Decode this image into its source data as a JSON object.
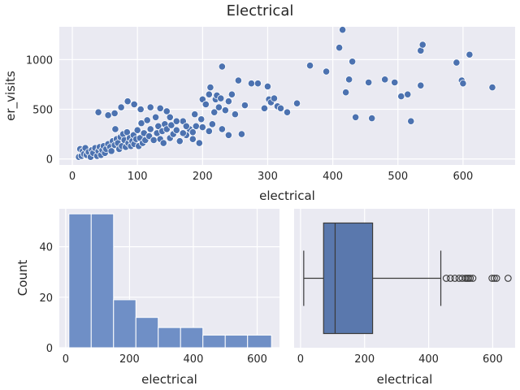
{
  "figure": {
    "title": "Electrical"
  },
  "colors": {
    "panel": "#eaeaf2",
    "grid": "#ffffff",
    "scatter": "#4c72b0",
    "hist": "#6f8fc6",
    "box": "#5a78ad",
    "edge": "#3a3a3a"
  },
  "chart_data": [
    {
      "type": "scatter",
      "title": "Electrical",
      "xlabel": "electrical",
      "ylabel": "er_visits",
      "xlim": [
        -20,
        680
      ],
      "ylim": [
        -60,
        1330
      ],
      "xticks": [
        0,
        100,
        200,
        300,
        400,
        500,
        600
      ],
      "yticks": [
        0,
        500,
        1000
      ],
      "grid": true,
      "points": [
        [
          10,
          20
        ],
        [
          12,
          100
        ],
        [
          14,
          30
        ],
        [
          16,
          80
        ],
        [
          18,
          50
        ],
        [
          20,
          110
        ],
        [
          22,
          40
        ],
        [
          25,
          70
        ],
        [
          28,
          20
        ],
        [
          30,
          90
        ],
        [
          32,
          60
        ],
        [
          35,
          110
        ],
        [
          38,
          30
        ],
        [
          40,
          80
        ],
        [
          42,
          120
        ],
        [
          44,
          40
        ],
        [
          46,
          90
        ],
        [
          48,
          130
        ],
        [
          50,
          60
        ],
        [
          52,
          100
        ],
        [
          55,
          150
        ],
        [
          58,
          120
        ],
        [
          60,
          80
        ],
        [
          62,
          180
        ],
        [
          65,
          140
        ],
        [
          66,
          300
        ],
        [
          68,
          200
        ],
        [
          70,
          160
        ],
        [
          72,
          100
        ],
        [
          74,
          220
        ],
        [
          76,
          130
        ],
        [
          78,
          250
        ],
        [
          80,
          190
        ],
        [
          82,
          120
        ],
        [
          84,
          270
        ],
        [
          86,
          160
        ],
        [
          88,
          210
        ],
        [
          90,
          130
        ],
        [
          92,
          180
        ],
        [
          94,
          240
        ],
        [
          95,
          150
        ],
        [
          98,
          200
        ],
        [
          100,
          290
        ],
        [
          102,
          130
        ],
        [
          104,
          210
        ],
        [
          106,
          360
        ],
        [
          108,
          160
        ],
        [
          110,
          260
        ],
        [
          112,
          190
        ],
        [
          115,
          390
        ],
        [
          118,
          230
        ],
        [
          120,
          300
        ],
        [
          125,
          190
        ],
        [
          128,
          420
        ],
        [
          130,
          260
        ],
        [
          132,
          330
        ],
        [
          135,
          200
        ],
        [
          138,
          280
        ],
        [
          140,
          160
        ],
        [
          142,
          350
        ],
        [
          145,
          300
        ],
        [
          150,
          210
        ],
        [
          152,
          340
        ],
        [
          155,
          250
        ],
        [
          160,
          290
        ],
        [
          165,
          180
        ],
        [
          170,
          380
        ],
        [
          175,
          240
        ],
        [
          180,
          300
        ],
        [
          185,
          200
        ],
        [
          188,
          450
        ],
        [
          190,
          330
        ],
        [
          195,
          160
        ],
        [
          198,
          400
        ],
        [
          200,
          600
        ],
        [
          205,
          550
        ],
        [
          210,
          650
        ],
        [
          212,
          720
        ],
        [
          215,
          350
        ],
        [
          218,
          470
        ],
        [
          220,
          600
        ],
        [
          222,
          640
        ],
        [
          225,
          520
        ],
        [
          228,
          610
        ],
        [
          230,
          930
        ],
        [
          235,
          490
        ],
        [
          240,
          580
        ],
        [
          245,
          650
        ],
        [
          250,
          450
        ],
        [
          255,
          790
        ],
        [
          265,
          540
        ],
        [
          275,
          760
        ],
        [
          285,
          760
        ],
        [
          295,
          510
        ],
        [
          300,
          730
        ],
        [
          302,
          600
        ],
        [
          305,
          570
        ],
        [
          310,
          610
        ],
        [
          315,
          530
        ],
        [
          320,
          510
        ],
        [
          330,
          470
        ],
        [
          345,
          560
        ],
        [
          365,
          940
        ],
        [
          390,
          880
        ],
        [
          410,
          1120
        ],
        [
          415,
          1300
        ],
        [
          420,
          670
        ],
        [
          425,
          800
        ],
        [
          430,
          980
        ],
        [
          435,
          420
        ],
        [
          455,
          770
        ],
        [
          460,
          410
        ],
        [
          480,
          800
        ],
        [
          495,
          770
        ],
        [
          505,
          630
        ],
        [
          515,
          650
        ],
        [
          520,
          380
        ],
        [
          535,
          740
        ],
        [
          535,
          1090
        ],
        [
          538,
          1150
        ],
        [
          590,
          970
        ],
        [
          598,
          790
        ],
        [
          600,
          760
        ],
        [
          610,
          1050
        ],
        [
          645,
          720
        ],
        [
          40,
          470
        ],
        [
          55,
          440
        ],
        [
          65,
          460
        ],
        [
          75,
          520
        ],
        [
          85,
          580
        ],
        [
          95,
          550
        ],
        [
          105,
          500
        ],
        [
          120,
          520
        ],
        [
          135,
          510
        ],
        [
          145,
          480
        ],
        [
          150,
          420
        ],
        [
          160,
          380
        ],
        [
          170,
          260
        ],
        [
          175,
          330
        ],
        [
          185,
          270
        ],
        [
          200,
          320
        ],
        [
          210,
          280
        ],
        [
          230,
          300
        ],
        [
          240,
          240
        ],
        [
          260,
          250
        ]
      ]
    },
    {
      "type": "histogram",
      "xlabel": "electrical",
      "ylabel": "Count",
      "xlim": [
        -20,
        670
      ],
      "ylim": [
        0,
        55
      ],
      "xticks": [
        0,
        200,
        400,
        600
      ],
      "yticks": [
        0,
        20,
        40
      ],
      "bins": [
        {
          "from": 10,
          "to": 80,
          "count": 53
        },
        {
          "from": 80,
          "to": 150,
          "count": 53
        },
        {
          "from": 150,
          "to": 220,
          "count": 19
        },
        {
          "from": 220,
          "to": 290,
          "count": 12
        },
        {
          "from": 290,
          "to": 360,
          "count": 8
        },
        {
          "from": 360,
          "to": 430,
          "count": 8
        },
        {
          "from": 430,
          "to": 500,
          "count": 5
        },
        {
          "from": 500,
          "to": 570,
          "count": 5
        },
        {
          "from": 570,
          "to": 645,
          "count": 5
        }
      ]
    },
    {
      "type": "box",
      "xlabel": "electrical",
      "xlim": [
        -20,
        670
      ],
      "xticks": [
        0,
        200,
        400,
        600
      ],
      "whisker_low": 10,
      "q1": 72,
      "median": 108,
      "q3": 225,
      "whisker_high": 438,
      "outliers": [
        455,
        468,
        482,
        495,
        505,
        515,
        520,
        525,
        530,
        538,
        598,
        605,
        612,
        648
      ]
    }
  ]
}
